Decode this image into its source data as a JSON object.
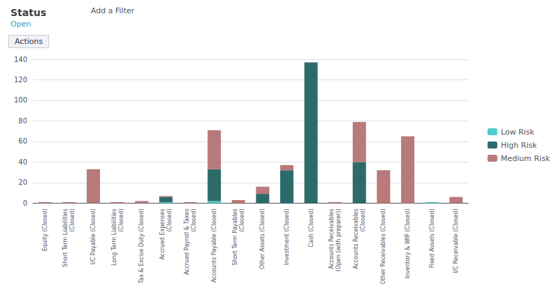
{
  "chart_data": {
    "type": "bar",
    "title": "Status",
    "subtitle": "Open",
    "annotations": [
      "Add a Filter",
      "Actions"
    ],
    "categories": [
      "Equity (Closed)",
      "Short Term Liabilities\n(Closed)",
      "I/C Payable (Closed)",
      "Long Term Liabilities\n(Closed)",
      "Tax & Excise Duty (Closed)",
      "Accrued Expenses\n(Closed)",
      "Accrued Payroll & Taxes\n(Closed)",
      "Accounts Payable (Closed)",
      "Short Term Payables\n(Closed)",
      "Other Assets (Closed)",
      "Investment (Closed)",
      "Cash (Closed)",
      "Accounts Receivables\n(Open (with preparer))",
      "Accounts Receivables\n(Closed)",
      "Other Receivables (Closed)",
      "Inventory & WIP (Closed)",
      "Fixed Assets (Closed)",
      "I/C Receivable (Closed)"
    ],
    "series": [
      {
        "name": "Low Risk",
        "color": "#4ecbcb",
        "values": [
          0,
          0,
          0,
          0,
          0,
          1,
          0,
          2,
          0,
          0,
          0,
          0,
          0,
          0,
          0,
          0,
          1,
          0
        ]
      },
      {
        "name": "High Risk",
        "color": "#2d6b6b",
        "values": [
          0,
          0,
          0,
          0,
          0,
          5,
          0,
          31,
          0,
          9,
          32,
          137,
          0,
          40,
          0,
          0,
          0,
          0
        ]
      },
      {
        "name": "Medium Risk",
        "color": "#b87a7a",
        "values": [
          1,
          1,
          33,
          1,
          2,
          1,
          1,
          38,
          3,
          7,
          5,
          0,
          1,
          39,
          32,
          65,
          0,
          6
        ]
      }
    ],
    "stacked": true,
    "ylim": [
      0,
      140
    ],
    "yticks": [
      0,
      20,
      40,
      60,
      80,
      100,
      120,
      140
    ],
    "grid": true,
    "legend": "right"
  }
}
